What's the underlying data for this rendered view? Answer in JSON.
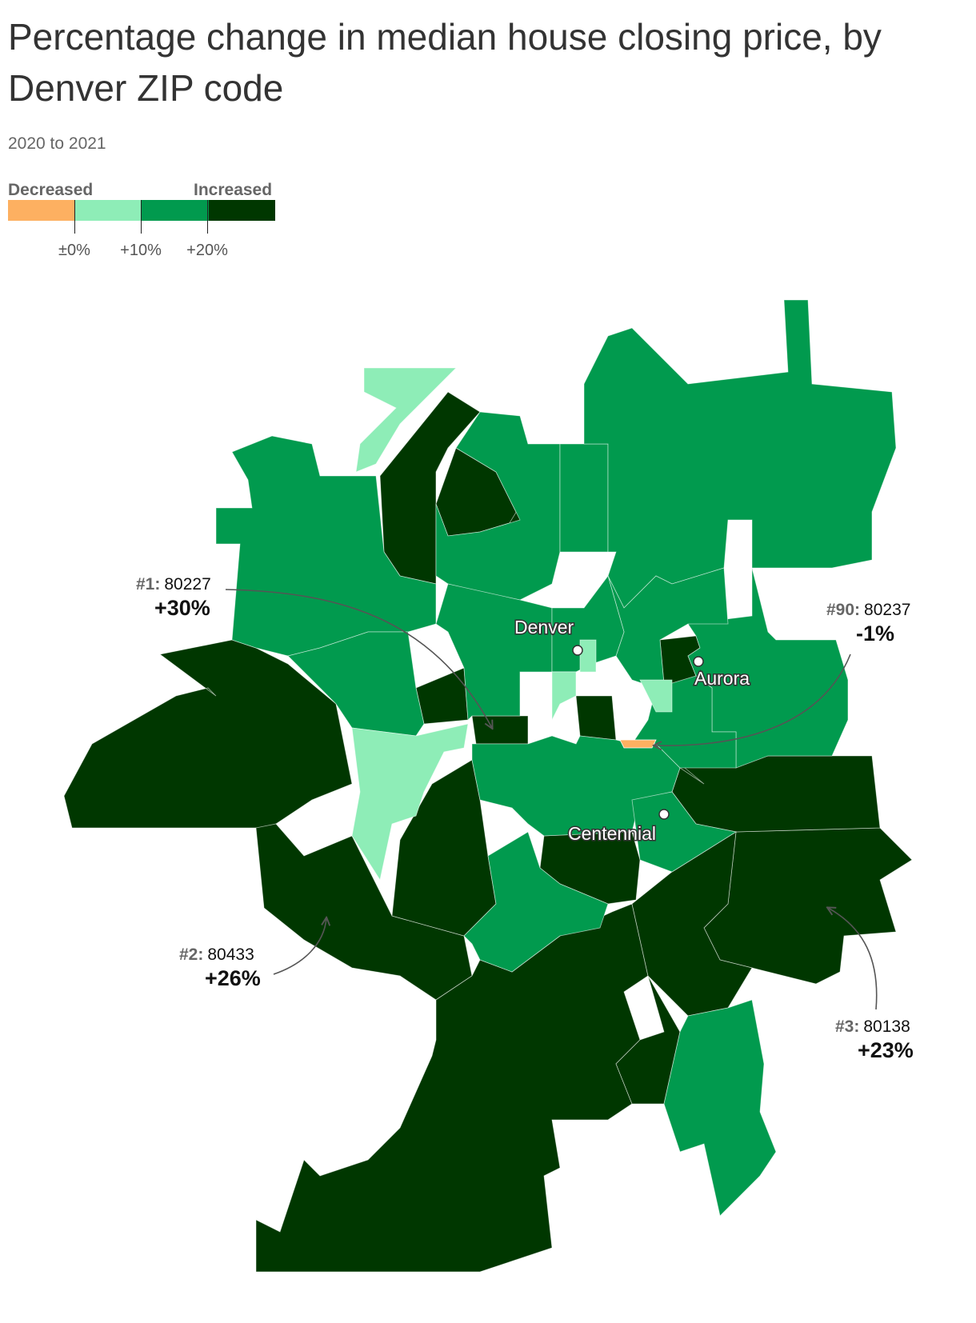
{
  "title": "Percentage change in median house closing price, by Denver ZIP code",
  "subtitle": "2020 to 2021",
  "legend": {
    "low_label": "Decreased",
    "high_label": "Increased",
    "colors": [
      "#fdb061",
      "#8eedb7",
      "#019a4e",
      "#003700"
    ],
    "ticks": [
      "±0%",
      "+10%",
      "+20%"
    ]
  },
  "map": {
    "colors": {
      "decreased": "#fdb061",
      "low": "#8eedb7",
      "mid": "#019a4e",
      "high": "#003700"
    },
    "cities": [
      {
        "name": "Denver"
      },
      {
        "name": "Aurora"
      },
      {
        "name": "Centennial"
      }
    ]
  },
  "annotations": [
    {
      "rank": "#1:",
      "zip": "80227",
      "value": "+30%"
    },
    {
      "rank": "#90:",
      "zip": "80237",
      "value": "-1%"
    },
    {
      "rank": "#2:",
      "zip": "80433",
      "value": "+26%"
    },
    {
      "rank": "#3:",
      "zip": "80138",
      "value": "+23%"
    }
  ]
}
